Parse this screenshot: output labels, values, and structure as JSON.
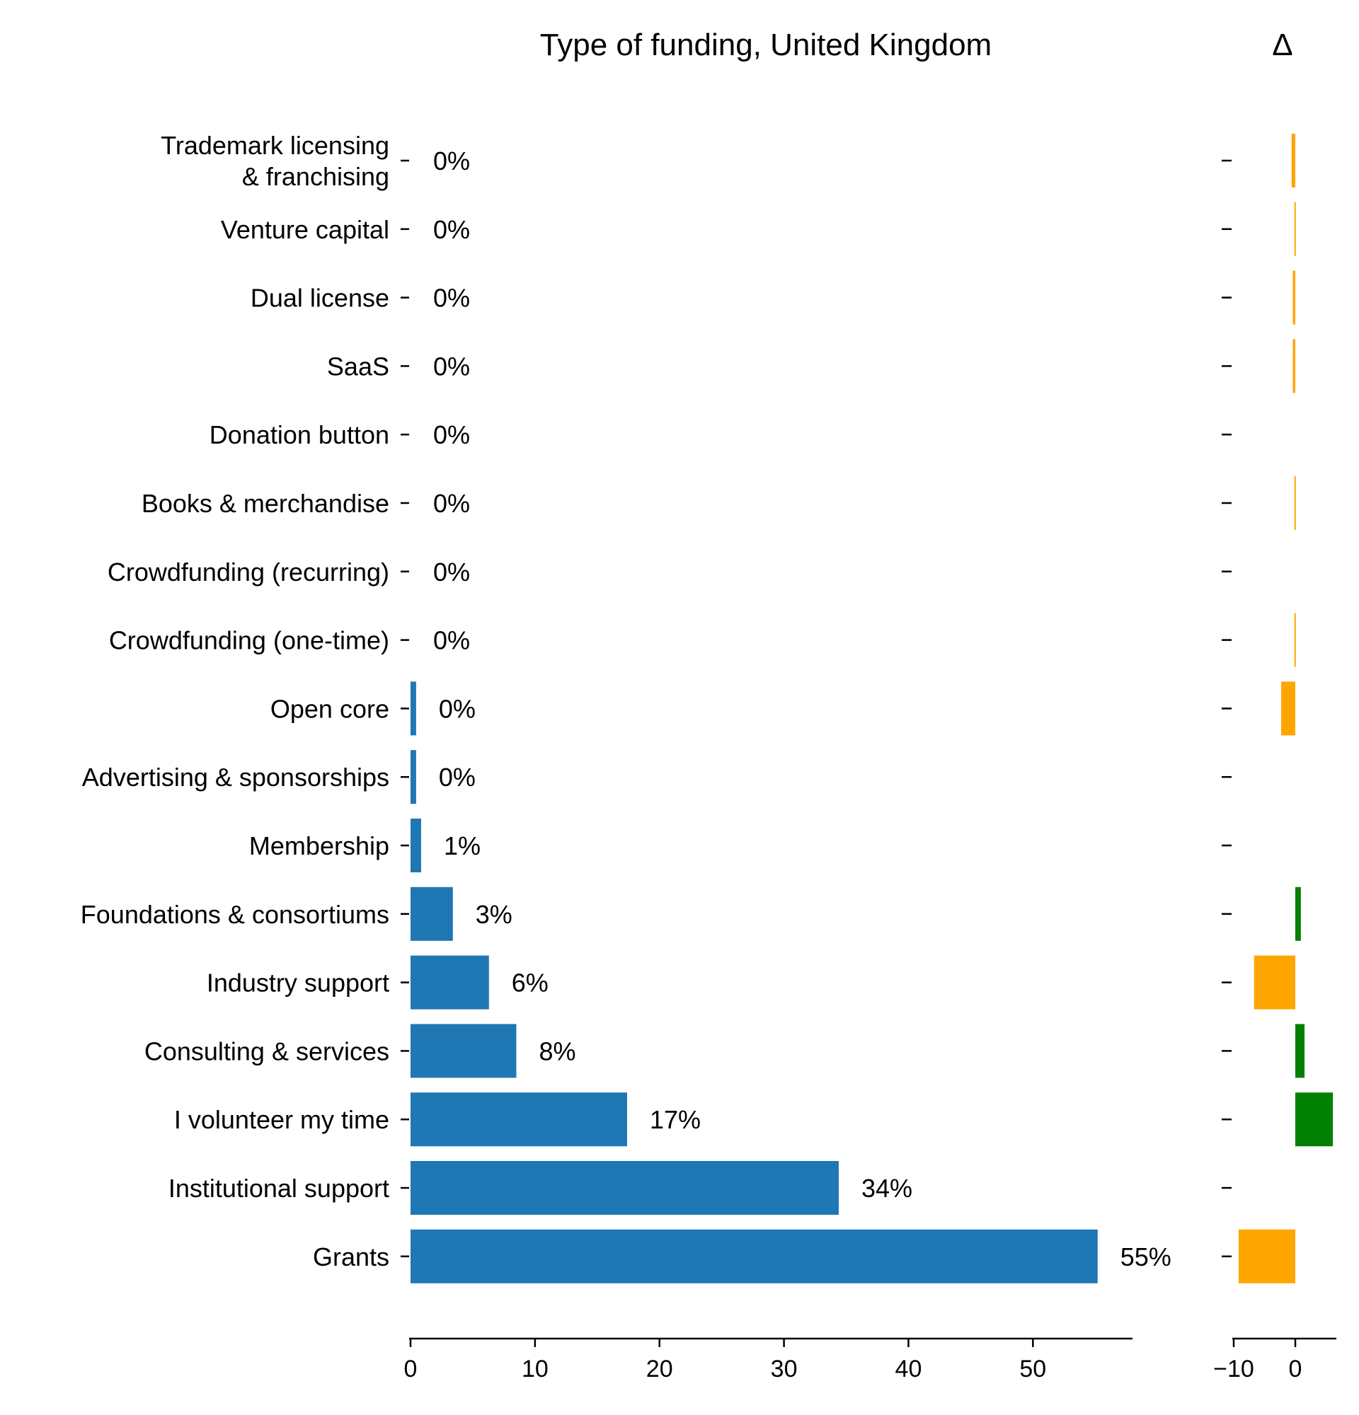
{
  "chart_data": [
    {
      "type": "bar",
      "orientation": "horizontal",
      "title": "Type of funding, United Kingdom",
      "xlabel": "",
      "ylabel": "",
      "xlim": [
        0,
        58
      ],
      "xticks": [
        0,
        10,
        20,
        30,
        40,
        50
      ],
      "categories": [
        "Trademark licensing\n& franchising",
        "Venture capital",
        "Dual license",
        "SaaS",
        "Donation button",
        "Books & merchandise",
        "Crowdfunding (recurring)",
        "Crowdfunding (one-time)",
        "Open core",
        "Advertising & sponsorships",
        "Membership",
        "Foundations & consortiums",
        "Industry support",
        "Consulting & services",
        "I volunteer my time",
        "Institutional support",
        "Grants"
      ],
      "values": [
        0,
        0,
        0,
        0,
        0,
        0,
        0,
        0,
        0.45,
        0.45,
        0.85,
        3.4,
        6.3,
        8.5,
        17.4,
        34.4,
        55.2
      ],
      "labels": [
        "0%",
        "0%",
        "0%",
        "0%",
        "0%",
        "0%",
        "0%",
        "0%",
        "0%",
        "0%",
        "1%",
        "3%",
        "6%",
        "8%",
        "17%",
        "34%",
        "55%"
      ],
      "bar_color": "#1f77b4",
      "grid": false,
      "legend": "none"
    },
    {
      "type": "bar",
      "orientation": "horizontal",
      "title": "Δ",
      "xlim": [
        -10,
        7
      ],
      "xticks": [
        -10,
        0
      ],
      "xtick_labels": [
        "−10",
        "0"
      ],
      "categories_shared_with_left": true,
      "values": [
        -0.6,
        -0.15,
        -0.4,
        -0.4,
        0,
        -0.15,
        0,
        -0.15,
        -2.3,
        0,
        0,
        0.9,
        -6.7,
        1.5,
        6.1,
        0,
        -9.2
      ],
      "positive_color": "#008000",
      "negative_color": "#ffa500",
      "grid": false,
      "legend": "none"
    }
  ]
}
